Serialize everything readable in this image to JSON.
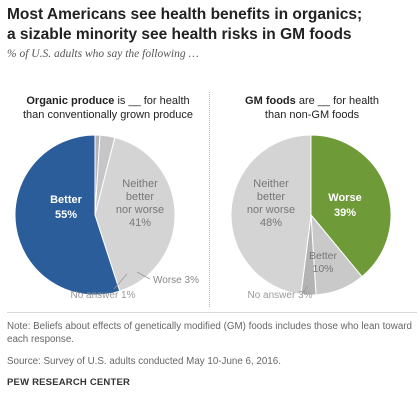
{
  "title_line1": "Most Americans see health benefits in organics;",
  "title_line2": "a sizable minority see health risks in GM foods",
  "subtitle": "% of U.S. adults who say the following …",
  "panels": [
    {
      "head_bold": "Organic produce",
      "head_rest1": " is __ for health",
      "head_line2": "than conventionally grown produce"
    },
    {
      "head_bold": "GM foods",
      "head_rest1": " are __ for health",
      "head_line2": "than non-GM foods"
    }
  ],
  "chart_data": [
    {
      "type": "pie",
      "title": "Organic produce is __ for health than conventionally grown produce",
      "slices": [
        {
          "label": "Better",
          "value": 55,
          "color": "#2b5d9b",
          "text_color": "#ffffff"
        },
        {
          "label": "Neither better nor worse",
          "value": 41,
          "color": "#d4d4d4",
          "text_color": "#666666"
        },
        {
          "label": "Worse",
          "value": 3,
          "color": "#c6c6c6",
          "text_color": "#666666"
        },
        {
          "label": "No answer",
          "value": 1,
          "color": "#b3b3b3",
          "text_color": "#888888"
        }
      ],
      "labels": {
        "better": [
          "Better",
          "55%"
        ],
        "neither": [
          "Neither",
          "better",
          "nor worse",
          "41%"
        ],
        "worse": "Worse 3%",
        "no_answer": "No answer 1%"
      }
    },
    {
      "type": "pie",
      "title": "GM foods are __ for health than non-GM foods",
      "slices": [
        {
          "label": "Worse",
          "value": 39,
          "color": "#6f9a38",
          "text_color": "#ffffff"
        },
        {
          "label": "Better",
          "value": 10,
          "color": "#c9c9c9",
          "text_color": "#666666"
        },
        {
          "label": "No answer",
          "value": 3,
          "color": "#b3b3b3",
          "text_color": "#888888"
        },
        {
          "label": "Neither better nor worse",
          "value": 48,
          "color": "#d4d4d4",
          "text_color": "#666666"
        }
      ],
      "labels": {
        "worse": [
          "Worse",
          "39%"
        ],
        "better": [
          "Better",
          "10%"
        ],
        "neither": [
          "Neither",
          "better",
          "nor worse",
          "48%"
        ],
        "no_answer": "No answer 3%"
      }
    }
  ],
  "note": "Note: Beliefs about effects of genetically modified (GM) foods includes those who lean toward each response.",
  "source": "Source: Survey of U.S. adults conducted May 10-June 6, 2016.",
  "org": "PEW RESEARCH CENTER"
}
